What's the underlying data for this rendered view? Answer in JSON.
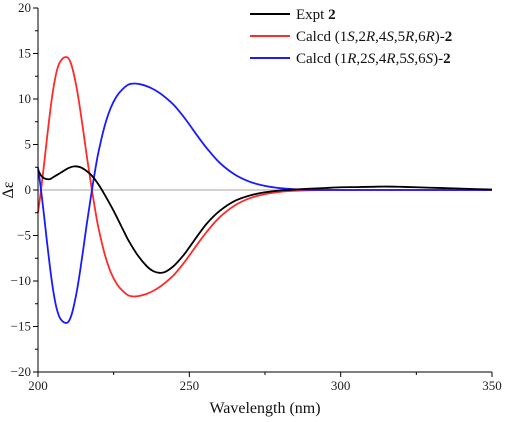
{
  "chart_data": {
    "type": "line",
    "xlabel": "Wavelength (nm)",
    "ylabel": "Δε",
    "xlim": [
      200,
      350
    ],
    "ylim": [
      -20,
      20
    ],
    "x_ticks": [
      200,
      250,
      300,
      350
    ],
    "y_ticks": [
      -20,
      -15,
      -10,
      -5,
      0,
      5,
      10,
      15,
      20
    ],
    "zero_line": true,
    "grid": false,
    "legend_position": "top-right",
    "series": [
      {
        "name": "Expt 2",
        "legend": [
          {
            "t": "Expt "
          },
          {
            "t": "2",
            "b": true
          }
        ],
        "color": "#000000",
        "x": [
          200,
          201,
          202,
          203,
          204,
          205,
          206,
          208,
          210,
          212,
          214,
          216,
          218,
          220,
          222,
          225,
          228,
          230,
          233,
          236,
          238,
          240,
          242,
          245,
          248,
          250,
          253,
          256,
          260,
          265,
          270,
          275,
          280,
          285,
          290,
          295,
          300,
          305,
          310,
          315,
          320,
          325,
          330,
          335,
          340,
          345,
          350
        ],
        "values": [
          2.2,
          1.6,
          1.3,
          1.2,
          1.2,
          1.4,
          1.6,
          2.0,
          2.4,
          2.6,
          2.5,
          2.1,
          1.5,
          0.6,
          -0.5,
          -2.3,
          -4.3,
          -5.6,
          -7.2,
          -8.4,
          -8.9,
          -9.1,
          -9.0,
          -8.3,
          -7.2,
          -6.3,
          -4.9,
          -3.6,
          -2.3,
          -1.2,
          -0.6,
          -0.25,
          -0.05,
          0.05,
          0.15,
          0.22,
          0.3,
          0.32,
          0.35,
          0.38,
          0.35,
          0.3,
          0.25,
          0.2,
          0.15,
          0.1,
          0.05
        ]
      },
      {
        "name": "Calcd (1S,2R,4S,5R,6R)-2",
        "legend": [
          {
            "t": "Calcd (1"
          },
          {
            "t": "S",
            "i": true
          },
          {
            "t": ",2"
          },
          {
            "t": "R",
            "i": true
          },
          {
            "t": ",4"
          },
          {
            "t": "S",
            "i": true
          },
          {
            "t": ",5"
          },
          {
            "t": "R",
            "i": true
          },
          {
            "t": ",6"
          },
          {
            "t": "R",
            "i": true
          },
          {
            "t": ")-"
          },
          {
            "t": "2",
            "b": true
          }
        ],
        "color": "#ff2a2a",
        "x": [
          200,
          201,
          202,
          203,
          204,
          205,
          206,
          207,
          208,
          209,
          210,
          211,
          212,
          213,
          214,
          215,
          216,
          217,
          218,
          219,
          220,
          222,
          224,
          226,
          228,
          230,
          232,
          234,
          236,
          238,
          240,
          242,
          245,
          248,
          250,
          253,
          256,
          260,
          265,
          270,
          275,
          280,
          285,
          290,
          300,
          310,
          320,
          330,
          340,
          350
        ],
        "values": [
          -2.5,
          0.0,
          2.8,
          5.8,
          8.6,
          11.0,
          12.8,
          13.9,
          14.4,
          14.6,
          14.5,
          13.8,
          12.5,
          10.8,
          8.7,
          6.4,
          4.0,
          1.8,
          -0.4,
          -2.4,
          -4.2,
          -7.0,
          -9.0,
          -10.3,
          -11.1,
          -11.6,
          -11.7,
          -11.6,
          -11.4,
          -11.1,
          -10.7,
          -10.2,
          -9.3,
          -8.1,
          -7.2,
          -5.8,
          -4.5,
          -3.0,
          -1.7,
          -0.9,
          -0.45,
          -0.2,
          -0.08,
          -0.02,
          0.0,
          0.0,
          0.0,
          0.0,
          0.0,
          0.0
        ]
      },
      {
        "name": "Calcd (1R,2S,4R,5S,6S)-2",
        "legend": [
          {
            "t": "Calcd (1"
          },
          {
            "t": "R",
            "i": true
          },
          {
            "t": ",2"
          },
          {
            "t": "S",
            "i": true
          },
          {
            "t": ",4"
          },
          {
            "t": "R",
            "i": true
          },
          {
            "t": ",5"
          },
          {
            "t": "S",
            "i": true
          },
          {
            "t": ",6"
          },
          {
            "t": "S",
            "i": true
          },
          {
            "t": ")-"
          },
          {
            "t": "2",
            "b": true
          }
        ],
        "color": "#1a1aff",
        "x": [
          200,
          201,
          202,
          203,
          204,
          205,
          206,
          207,
          208,
          209,
          210,
          211,
          212,
          213,
          214,
          215,
          216,
          217,
          218,
          219,
          220,
          222,
          224,
          226,
          228,
          230,
          232,
          234,
          236,
          238,
          240,
          242,
          245,
          248,
          250,
          253,
          256,
          260,
          265,
          270,
          275,
          280,
          285,
          290,
          300,
          310,
          320,
          330,
          340,
          350
        ],
        "values": [
          2.5,
          0.0,
          -2.8,
          -5.8,
          -8.6,
          -11.0,
          -12.8,
          -13.9,
          -14.4,
          -14.6,
          -14.5,
          -13.8,
          -12.5,
          -10.8,
          -8.7,
          -6.4,
          -4.0,
          -1.8,
          0.4,
          2.4,
          4.2,
          7.0,
          9.0,
          10.3,
          11.1,
          11.6,
          11.7,
          11.6,
          11.4,
          11.1,
          10.7,
          10.2,
          9.3,
          8.1,
          7.2,
          5.8,
          4.5,
          3.0,
          1.7,
          0.9,
          0.45,
          0.2,
          0.08,
          0.02,
          0.0,
          0.0,
          0.0,
          0.0,
          0.0,
          0.0
        ]
      }
    ]
  }
}
